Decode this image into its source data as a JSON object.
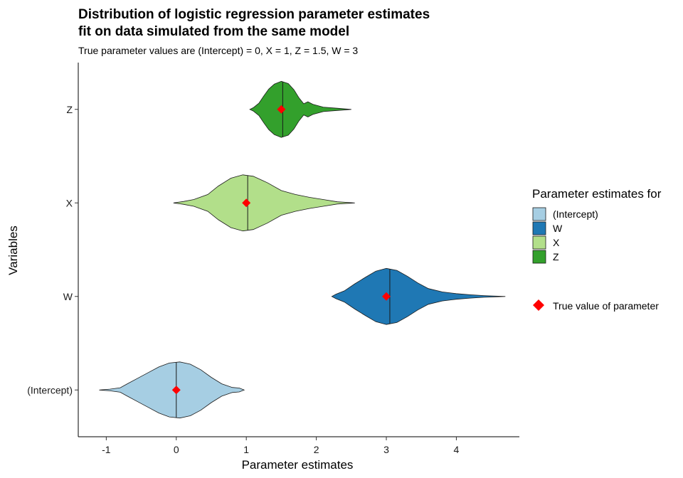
{
  "chart_data": {
    "type": "violin",
    "title_line1": "Distribution of logistic regression parameter estimates",
    "title_line2": "fit on data simulated from the same model",
    "subtitle": "True parameter values are (Intercept) = 0, X = 1, Z = 1.5, W = 3",
    "xlabel": "Parameter estimates",
    "ylabel": "Variables",
    "xlim": [
      -1.4,
      4.9
    ],
    "x_ticks": [
      -1,
      0,
      1,
      2,
      3,
      4
    ],
    "x_tick_labels": [
      "-1",
      "0",
      "1",
      "2",
      "3",
      "4"
    ],
    "categories": [
      "(Intercept)",
      "W",
      "X",
      "Z"
    ],
    "legend_title": "Parameter estimates for",
    "legend_marker_label": "True value of parameter",
    "legend_position": "right",
    "series": [
      {
        "name": "(Intercept)",
        "color": "#a6cee3",
        "median": 0.0,
        "true_value": 0,
        "profile": [
          [
            -1.1,
            0.0
          ],
          [
            -0.95,
            0.03
          ],
          [
            -0.8,
            0.08
          ],
          [
            -0.7,
            0.22
          ],
          [
            -0.55,
            0.42
          ],
          [
            -0.4,
            0.62
          ],
          [
            -0.25,
            0.82
          ],
          [
            -0.1,
            0.96
          ],
          [
            0.05,
            1.0
          ],
          [
            0.2,
            0.92
          ],
          [
            0.35,
            0.72
          ],
          [
            0.5,
            0.45
          ],
          [
            0.65,
            0.22
          ],
          [
            0.8,
            0.09
          ],
          [
            0.9,
            0.07
          ],
          [
            0.97,
            0.0
          ]
        ]
      },
      {
        "name": "W",
        "color": "#1f78b4",
        "median": 3.05,
        "true_value": 3,
        "profile": [
          [
            2.22,
            0.0
          ],
          [
            2.28,
            0.08
          ],
          [
            2.4,
            0.2
          ],
          [
            2.55,
            0.45
          ],
          [
            2.7,
            0.68
          ],
          [
            2.85,
            0.9
          ],
          [
            3.0,
            1.0
          ],
          [
            3.15,
            0.93
          ],
          [
            3.3,
            0.72
          ],
          [
            3.45,
            0.48
          ],
          [
            3.6,
            0.28
          ],
          [
            3.8,
            0.16
          ],
          [
            4.0,
            0.1
          ],
          [
            4.2,
            0.06
          ],
          [
            4.4,
            0.03
          ],
          [
            4.7,
            0.0
          ]
        ]
      },
      {
        "name": "X",
        "color": "#b2df8a",
        "median": 1.02,
        "true_value": 1,
        "profile": [
          [
            -0.04,
            0.0
          ],
          [
            0.1,
            0.05
          ],
          [
            0.25,
            0.12
          ],
          [
            0.45,
            0.3
          ],
          [
            0.6,
            0.6
          ],
          [
            0.78,
            0.88
          ],
          [
            0.95,
            1.0
          ],
          [
            1.1,
            0.95
          ],
          [
            1.3,
            0.72
          ],
          [
            1.5,
            0.44
          ],
          [
            1.7,
            0.3
          ],
          [
            1.9,
            0.2
          ],
          [
            2.1,
            0.12
          ],
          [
            2.3,
            0.04
          ],
          [
            2.55,
            0.0
          ]
        ]
      },
      {
        "name": "Z",
        "color": "#33a02c",
        "median": 1.52,
        "true_value": 1.5,
        "profile": [
          [
            1.05,
            0.0
          ],
          [
            1.1,
            0.06
          ],
          [
            1.18,
            0.22
          ],
          [
            1.25,
            0.48
          ],
          [
            1.32,
            0.72
          ],
          [
            1.4,
            0.9
          ],
          [
            1.5,
            1.0
          ],
          [
            1.6,
            0.92
          ],
          [
            1.68,
            0.7
          ],
          [
            1.75,
            0.42
          ],
          [
            1.82,
            0.2
          ],
          [
            1.88,
            0.27
          ],
          [
            1.95,
            0.18
          ],
          [
            2.1,
            0.08
          ],
          [
            2.3,
            0.04
          ],
          [
            2.5,
            0.0
          ]
        ]
      }
    ]
  }
}
